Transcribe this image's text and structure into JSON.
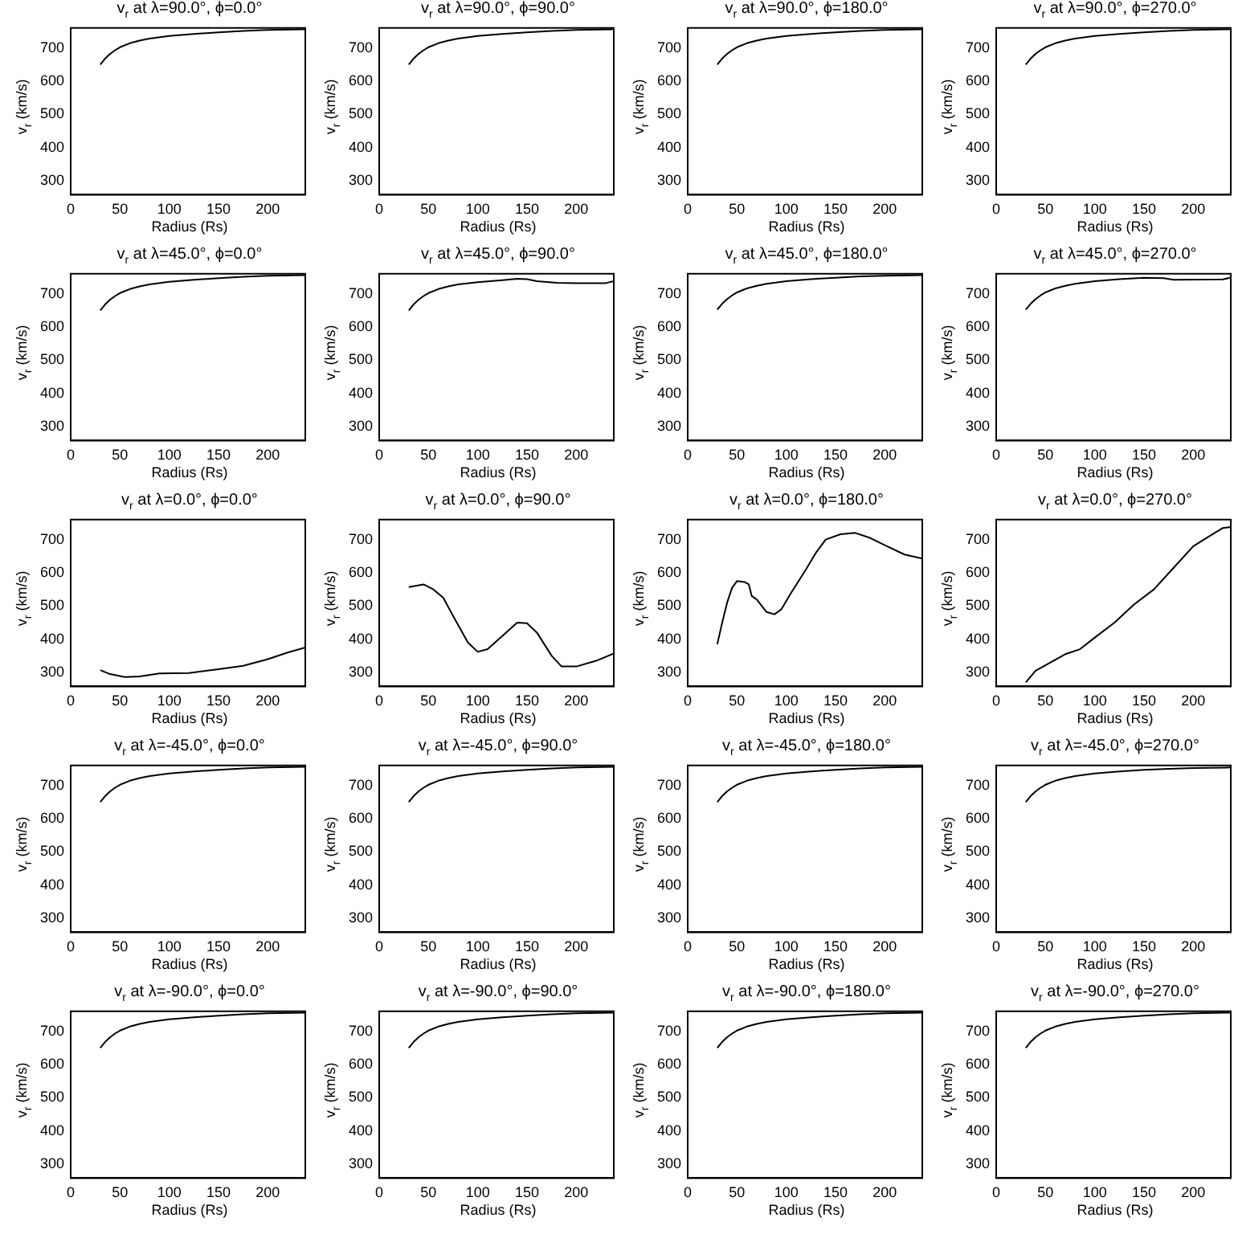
{
  "chart_data": [
    {
      "type": "line",
      "title": "v$_{r}$ at λ=90.0°, ϕ=0.0°",
      "xlabel": "Radius (Rs)",
      "ylabel": "v$_{r}$ (km/s)",
      "x": [
        30,
        35,
        40,
        45,
        50,
        60,
        70,
        80,
        100,
        125,
        150,
        175,
        200,
        238
      ],
      "values": [
        650,
        668,
        682,
        693,
        702,
        714,
        722,
        728,
        736,
        742,
        747,
        751,
        754,
        756
      ],
      "color": "#000000",
      "xlim": [
        0,
        238
      ],
      "ylim": [
        258,
        760
      ],
      "xticks": [
        0,
        50,
        100,
        150,
        200
      ],
      "yticks": [
        300,
        400,
        500,
        600,
        700
      ]
    },
    {
      "type": "line",
      "title": "v$_{r}$ at λ=90.0°, ϕ=90.0°",
      "xlabel": "Radius (Rs)",
      "ylabel": "v$_{r}$ (km/s)",
      "x": [
        30,
        35,
        40,
        45,
        50,
        60,
        70,
        80,
        100,
        125,
        150,
        175,
        200,
        238
      ],
      "values": [
        650,
        668,
        682,
        693,
        702,
        714,
        722,
        728,
        736,
        742,
        747,
        751,
        754,
        756
      ],
      "color": "#000000",
      "xlim": [
        0,
        238
      ],
      "ylim": [
        258,
        760
      ],
      "xticks": [
        0,
        50,
        100,
        150,
        200
      ],
      "yticks": [
        300,
        400,
        500,
        600,
        700
      ]
    },
    {
      "type": "line",
      "title": "v$_{r}$ at λ=90.0°, ϕ=180.0°",
      "xlabel": "Radius (Rs)",
      "ylabel": "v$_{r}$ (km/s)",
      "x": [
        30,
        35,
        40,
        45,
        50,
        60,
        70,
        80,
        100,
        125,
        150,
        175,
        200,
        238
      ],
      "values": [
        650,
        668,
        682,
        693,
        702,
        714,
        722,
        728,
        736,
        742,
        747,
        751,
        754,
        756
      ],
      "color": "#000000",
      "xlim": [
        0,
        238
      ],
      "ylim": [
        258,
        760
      ],
      "xticks": [
        0,
        50,
        100,
        150,
        200
      ],
      "yticks": [
        300,
        400,
        500,
        600,
        700
      ]
    },
    {
      "type": "line",
      "title": "v$_{r}$ at λ=90.0°, ϕ=270.0°",
      "xlabel": "Radius (Rs)",
      "ylabel": "v$_{r}$ (km/s)",
      "x": [
        30,
        35,
        40,
        45,
        50,
        60,
        70,
        80,
        100,
        125,
        150,
        175,
        200,
        238
      ],
      "values": [
        650,
        668,
        682,
        693,
        702,
        714,
        722,
        728,
        736,
        742,
        747,
        751,
        754,
        756
      ],
      "color": "#000000",
      "xlim": [
        0,
        238
      ],
      "ylim": [
        258,
        760
      ],
      "xticks": [
        0,
        50,
        100,
        150,
        200
      ],
      "yticks": [
        300,
        400,
        500,
        600,
        700
      ]
    },
    {
      "type": "line",
      "title": "v$_{r}$ at λ=45.0°, ϕ=0.0°",
      "xlabel": "Radius (Rs)",
      "ylabel": "v$_{r}$ (km/s)",
      "x": [
        30,
        35,
        40,
        45,
        50,
        60,
        70,
        80,
        100,
        125,
        150,
        175,
        200,
        238
      ],
      "values": [
        650,
        668,
        682,
        693,
        702,
        714,
        722,
        728,
        736,
        742,
        747,
        751,
        754,
        756
      ],
      "color": "#000000",
      "xlim": [
        0,
        238
      ],
      "ylim": [
        258,
        760
      ],
      "xticks": [
        0,
        50,
        100,
        150,
        200
      ],
      "yticks": [
        300,
        400,
        500,
        600,
        700
      ]
    },
    {
      "type": "line",
      "title": "v$_{r}$ at λ=45.0°, ϕ=90.0°",
      "xlabel": "Radius (Rs)",
      "ylabel": "v$_{r}$ (km/s)",
      "x": [
        30,
        35,
        40,
        45,
        50,
        60,
        70,
        80,
        100,
        125,
        140,
        150,
        160,
        180,
        200,
        230,
        238
      ],
      "values": [
        650,
        668,
        682,
        693,
        702,
        714,
        722,
        728,
        735,
        741,
        745,
        744,
        738,
        733,
        732,
        732,
        738
      ],
      "color": "#000000",
      "xlim": [
        0,
        238
      ],
      "ylim": [
        258,
        760
      ],
      "xticks": [
        0,
        50,
        100,
        150,
        200
      ],
      "yticks": [
        300,
        400,
        500,
        600,
        700
      ]
    },
    {
      "type": "line",
      "title": "v$_{r}$ at λ=45.0°, ϕ=180.0°",
      "xlabel": "Radius (Rs)",
      "ylabel": "v$_{r}$ (km/s)",
      "x": [
        30,
        35,
        40,
        45,
        50,
        60,
        70,
        80,
        100,
        125,
        150,
        175,
        200,
        238
      ],
      "values": [
        652,
        670,
        684,
        695,
        704,
        716,
        724,
        730,
        738,
        744,
        748,
        752,
        754,
        756
      ],
      "color": "#000000",
      "xlim": [
        0,
        238
      ],
      "ylim": [
        258,
        760
      ],
      "xticks": [
        0,
        50,
        100,
        150,
        200
      ],
      "yticks": [
        300,
        400,
        500,
        600,
        700
      ]
    },
    {
      "type": "line",
      "title": "v$_{r}$ at λ=45.0°, ϕ=270.0°",
      "xlabel": "Radius (Rs)",
      "ylabel": "v$_{r}$ (km/s)",
      "x": [
        30,
        35,
        40,
        45,
        50,
        60,
        70,
        80,
        100,
        125,
        150,
        170,
        180,
        230,
        238
      ],
      "values": [
        652,
        670,
        684,
        695,
        704,
        716,
        724,
        730,
        738,
        744,
        748,
        747,
        742,
        743,
        749
      ],
      "color": "#000000",
      "xlim": [
        0,
        238
      ],
      "ylim": [
        258,
        760
      ],
      "xticks": [
        0,
        50,
        100,
        150,
        200
      ],
      "yticks": [
        300,
        400,
        500,
        600,
        700
      ]
    },
    {
      "type": "line",
      "title": "v$_{r}$ at λ=0.0°, ϕ=0.0°",
      "xlabel": "Radius (Rs)",
      "ylabel": "v$_{r}$ (km/s)",
      "x": [
        30,
        40,
        55,
        70,
        90,
        120,
        150,
        175,
        200,
        220,
        238
      ],
      "values": [
        307,
        295,
        286,
        288,
        297,
        298,
        310,
        320,
        340,
        360,
        375
      ],
      "color": "#000000",
      "xlim": [
        0,
        238
      ],
      "ylim": [
        258,
        760
      ],
      "xticks": [
        0,
        50,
        100,
        150,
        200
      ],
      "yticks": [
        300,
        400,
        500,
        600,
        700
      ]
    },
    {
      "type": "line",
      "title": "v$_{r}$ at λ=0.0°, ϕ=90.0°",
      "xlabel": "Radius (Rs)",
      "ylabel": "v$_{r}$ (km/s)",
      "x": [
        30,
        45,
        55,
        65,
        75,
        90,
        100,
        110,
        125,
        140,
        150,
        160,
        175,
        185,
        200,
        220,
        238
      ],
      "values": [
        557,
        565,
        550,
        525,
        470,
        390,
        362,
        370,
        410,
        450,
        448,
        420,
        350,
        318,
        318,
        335,
        357
      ],
      "color": "#000000",
      "xlim": [
        0,
        238
      ],
      "ylim": [
        258,
        760
      ],
      "xticks": [
        0,
        50,
        100,
        150,
        200
      ],
      "yticks": [
        300,
        400,
        500,
        600,
        700
      ]
    },
    {
      "type": "line",
      "title": "v$_{r}$ at λ=0.0°, ϕ=180.0°",
      "xlabel": "Radius (Rs)",
      "ylabel": "v$_{r}$ (km/s)",
      "x": [
        30,
        35,
        40,
        45,
        50,
        58,
        62,
        65,
        70,
        80,
        88,
        95,
        105,
        120,
        130,
        140,
        155,
        170,
        185,
        200,
        220,
        238
      ],
      "values": [
        385,
        450,
        510,
        555,
        575,
        572,
        565,
        530,
        520,
        482,
        475,
        490,
        540,
        610,
        660,
        700,
        716,
        720,
        705,
        683,
        655,
        643
      ],
      "color": "#000000",
      "xlim": [
        0,
        238
      ],
      "ylim": [
        258,
        760
      ],
      "xticks": [
        0,
        50,
        100,
        150,
        200
      ],
      "yticks": [
        300,
        400,
        500,
        600,
        700
      ]
    },
    {
      "type": "line",
      "title": "v$_{r}$ at λ=0.0°, ϕ=270.0°",
      "xlabel": "Radius (Rs)",
      "ylabel": "v$_{r}$ (km/s)",
      "x": [
        30,
        40,
        55,
        70,
        85,
        100,
        120,
        140,
        160,
        180,
        200,
        215,
        230,
        238
      ],
      "values": [
        270,
        305,
        330,
        355,
        370,
        405,
        450,
        505,
        550,
        615,
        680,
        708,
        735,
        738
      ],
      "color": "#000000",
      "xlim": [
        0,
        238
      ],
      "ylim": [
        258,
        760
      ],
      "xticks": [
        0,
        50,
        100,
        150,
        200
      ],
      "yticks": [
        300,
        400,
        500,
        600,
        700
      ]
    },
    {
      "type": "line",
      "title": "v$_{r}$ at λ=-45.0°, ϕ=0.0°",
      "xlabel": "Radius (Rs)",
      "ylabel": "v$_{r}$ (km/s)",
      "x": [
        30,
        35,
        40,
        45,
        50,
        60,
        70,
        80,
        100,
        125,
        150,
        175,
        200,
        238
      ],
      "values": [
        650,
        668,
        682,
        693,
        702,
        714,
        722,
        728,
        736,
        742,
        747,
        751,
        754,
        756
      ],
      "color": "#000000",
      "xlim": [
        0,
        238
      ],
      "ylim": [
        258,
        760
      ],
      "xticks": [
        0,
        50,
        100,
        150,
        200
      ],
      "yticks": [
        300,
        400,
        500,
        600,
        700
      ]
    },
    {
      "type": "line",
      "title": "v$_{r}$ at λ=-45.0°, ϕ=90.0°",
      "xlabel": "Radius (Rs)",
      "ylabel": "v$_{r}$ (km/s)",
      "x": [
        30,
        35,
        40,
        45,
        50,
        60,
        70,
        80,
        100,
        125,
        150,
        175,
        200,
        238
      ],
      "values": [
        650,
        668,
        682,
        693,
        702,
        714,
        722,
        728,
        736,
        742,
        747,
        751,
        754,
        756
      ],
      "color": "#000000",
      "xlim": [
        0,
        238
      ],
      "ylim": [
        258,
        760
      ],
      "xticks": [
        0,
        50,
        100,
        150,
        200
      ],
      "yticks": [
        300,
        400,
        500,
        600,
        700
      ]
    },
    {
      "type": "line",
      "title": "v$_{r}$ at λ=-45.0°, ϕ=180.0°",
      "xlabel": "Radius (Rs)",
      "ylabel": "v$_{r}$ (km/s)",
      "x": [
        30,
        35,
        40,
        45,
        50,
        60,
        70,
        80,
        100,
        125,
        150,
        175,
        200,
        238
      ],
      "values": [
        650,
        668,
        682,
        693,
        702,
        714,
        722,
        728,
        736,
        742,
        747,
        751,
        754,
        756
      ],
      "color": "#000000",
      "xlim": [
        0,
        238
      ],
      "ylim": [
        258,
        760
      ],
      "xticks": [
        0,
        50,
        100,
        150,
        200
      ],
      "yticks": [
        300,
        400,
        500,
        600,
        700
      ]
    },
    {
      "type": "line",
      "title": "v$_{r}$ at λ=-45.0°, ϕ=270.0°",
      "xlabel": "Radius (Rs)",
      "ylabel": "v$_{r}$ (km/s)",
      "x": [
        30,
        35,
        40,
        45,
        50,
        60,
        70,
        80,
        100,
        125,
        150,
        175,
        200,
        238
      ],
      "values": [
        650,
        668,
        682,
        693,
        702,
        714,
        722,
        728,
        736,
        742,
        747,
        750,
        752,
        754
      ],
      "color": "#000000",
      "xlim": [
        0,
        238
      ],
      "ylim": [
        258,
        760
      ],
      "xticks": [
        0,
        50,
        100,
        150,
        200
      ],
      "yticks": [
        300,
        400,
        500,
        600,
        700
      ]
    },
    {
      "type": "line",
      "title": "v$_{r}$ at λ=-90.0°, ϕ=0.0°",
      "xlabel": "Radius (Rs)",
      "ylabel": "v$_{r}$ (km/s)",
      "x": [
        30,
        35,
        40,
        45,
        50,
        60,
        70,
        80,
        100,
        125,
        150,
        175,
        200,
        238
      ],
      "values": [
        650,
        668,
        682,
        693,
        702,
        714,
        722,
        728,
        736,
        742,
        747,
        751,
        754,
        756
      ],
      "color": "#000000",
      "xlim": [
        0,
        238
      ],
      "ylim": [
        258,
        760
      ],
      "xticks": [
        0,
        50,
        100,
        150,
        200
      ],
      "yticks": [
        300,
        400,
        500,
        600,
        700
      ]
    },
    {
      "type": "line",
      "title": "v$_{r}$ at λ=-90.0°, ϕ=90.0°",
      "xlabel": "Radius (Rs)",
      "ylabel": "v$_{r}$ (km/s)",
      "x": [
        30,
        35,
        40,
        45,
        50,
        60,
        70,
        80,
        100,
        125,
        150,
        175,
        200,
        238
      ],
      "values": [
        650,
        668,
        682,
        693,
        702,
        714,
        722,
        728,
        736,
        742,
        747,
        751,
        754,
        756
      ],
      "color": "#000000",
      "xlim": [
        0,
        238
      ],
      "ylim": [
        258,
        760
      ],
      "xticks": [
        0,
        50,
        100,
        150,
        200
      ],
      "yticks": [
        300,
        400,
        500,
        600,
        700
      ]
    },
    {
      "type": "line",
      "title": "v$_{r}$ at λ=-90.0°, ϕ=180.0°",
      "xlabel": "Radius (Rs)",
      "ylabel": "v$_{r}$ (km/s)",
      "x": [
        30,
        35,
        40,
        45,
        50,
        60,
        70,
        80,
        100,
        125,
        150,
        175,
        200,
        238
      ],
      "values": [
        650,
        668,
        682,
        693,
        702,
        714,
        722,
        728,
        736,
        742,
        747,
        751,
        754,
        756
      ],
      "color": "#000000",
      "xlim": [
        0,
        238
      ],
      "ylim": [
        258,
        760
      ],
      "xticks": [
        0,
        50,
        100,
        150,
        200
      ],
      "yticks": [
        300,
        400,
        500,
        600,
        700
      ]
    },
    {
      "type": "line",
      "title": "v$_{r}$ at λ=-90.0°, ϕ=270.0°",
      "xlabel": "Radius (Rs)",
      "ylabel": "v$_{r}$ (km/s)",
      "x": [
        30,
        35,
        40,
        45,
        50,
        60,
        70,
        80,
        100,
        125,
        150,
        175,
        200,
        238
      ],
      "values": [
        650,
        668,
        682,
        693,
        702,
        714,
        722,
        728,
        736,
        742,
        747,
        751,
        754,
        756
      ],
      "color": "#000000",
      "xlim": [
        0,
        238
      ],
      "ylim": [
        258,
        760
      ],
      "xticks": [
        0,
        50,
        100,
        150,
        200
      ],
      "yticks": [
        300,
        400,
        500,
        600,
        700
      ]
    }
  ]
}
